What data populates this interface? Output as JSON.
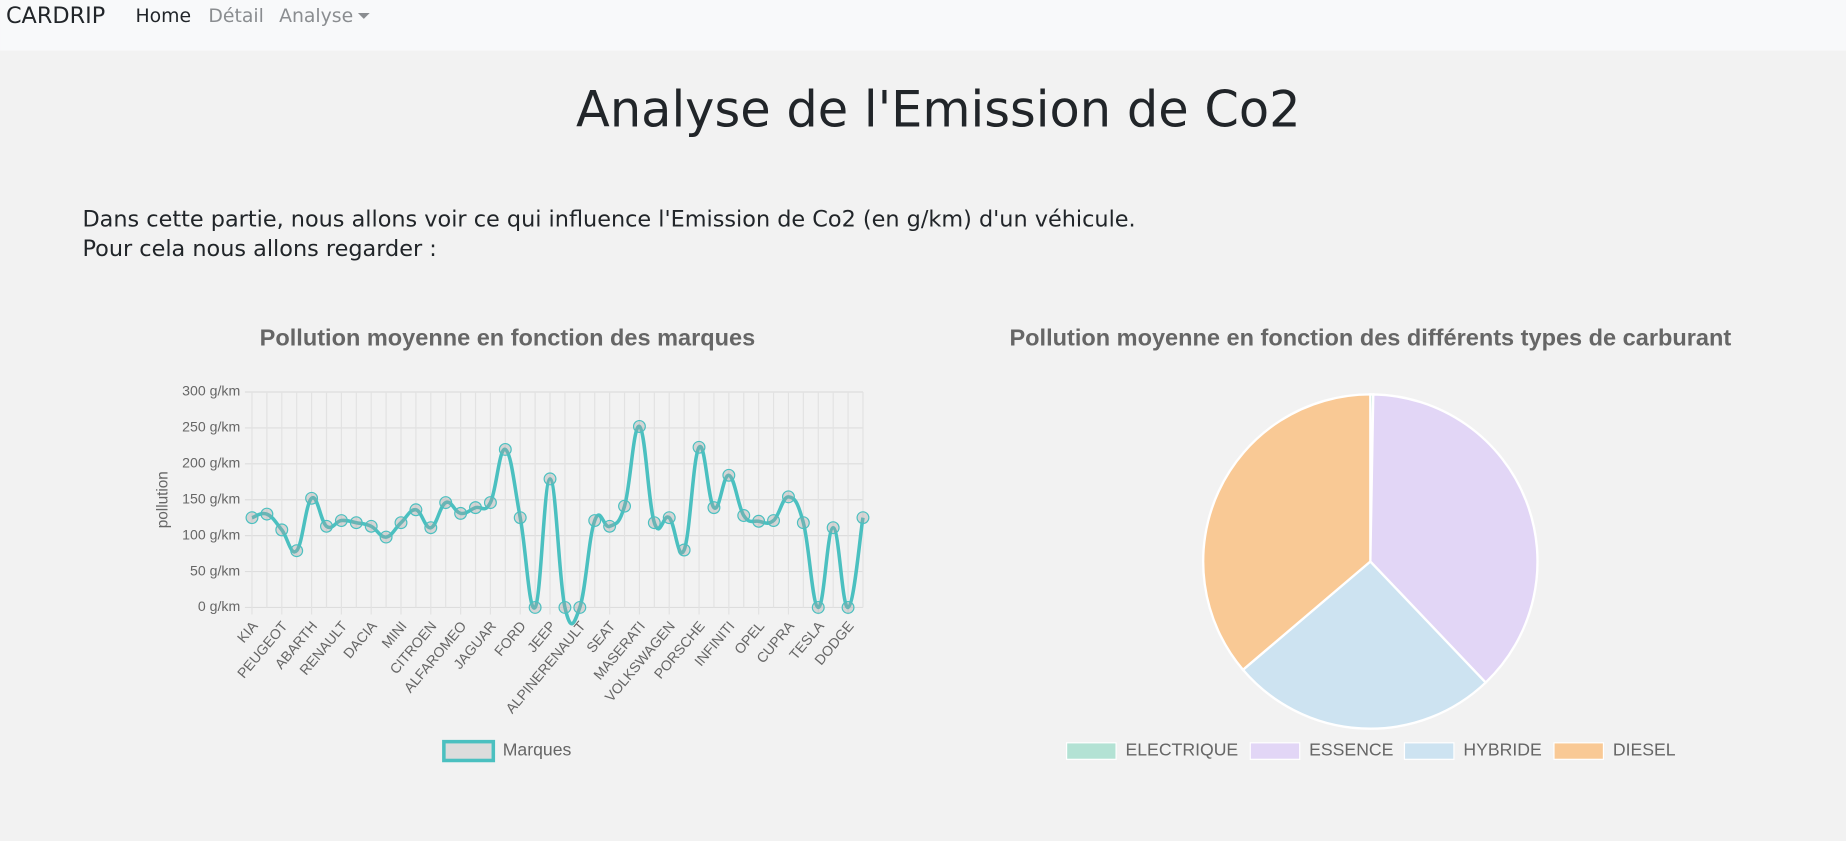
{
  "nav": {
    "brand": "CARDRIP",
    "links": [
      "Home",
      "Détail",
      "Analyse"
    ]
  },
  "heading": "Analyse de l'Emission de Co2",
  "intro": [
    "Dans cette partie, nous allons voir ce qui influence l'Emission de Co2 (en g/km) d'un véhicule.",
    "Pour cela nous allons regarder :"
  ],
  "chart_data": [
    {
      "type": "line",
      "title": "Pollution moyenne en fonction des marques",
      "y_label": "pollution",
      "categories": [
        "KIA",
        null,
        "PEUGEOT",
        null,
        "ABARTH",
        null,
        "RENAULT",
        null,
        "DACIA",
        null,
        "MINI",
        null,
        "CITROEN",
        null,
        "ALFAROMEO",
        null,
        "JAGUAR",
        null,
        "FORD",
        null,
        "JEEP",
        null,
        "ALPINERENAULT",
        null,
        "SEAT",
        null,
        "MASERATI",
        null,
        "VOLKSWAGEN",
        null,
        "PORSCHE",
        null,
        "INFINITI",
        null,
        "OPEL",
        null,
        "CUPRA",
        null,
        "TESLA",
        null,
        "DODGE",
        null
      ],
      "series": [
        {
          "name": "Marques",
          "color": "#4bc0c0",
          "values": [
            125,
            130,
            108,
            79,
            152,
            113,
            121,
            118,
            113,
            98,
            118,
            136,
            111,
            146,
            131,
            139,
            146,
            220,
            125,
            0,
            179,
            0,
            0,
            121,
            113,
            141,
            252,
            118,
            125,
            80,
            223,
            139,
            184,
            128,
            120,
            121,
            154,
            118,
            0,
            111,
            0,
            125
          ]
        }
      ],
      "ylim": [
        0,
        300
      ],
      "yticks": [
        {
          "value": 0,
          "label": "0 g/km"
        },
        {
          "value": 50,
          "label": "50 g/km"
        },
        {
          "value": 100,
          "label": "100 g/km"
        },
        {
          "value": 150,
          "label": "150 g/km"
        },
        {
          "value": 200,
          "label": "200 g/km"
        },
        {
          "value": 250,
          "label": "250 g/km"
        },
        {
          "value": 300,
          "label": "300 g/km"
        }
      ],
      "grid": true,
      "legend": "bottom"
    },
    {
      "type": "pie",
      "title": "Pollution moyenne en fonction des différents types de carburant",
      "categories": [
        "ELECTRIQUE",
        "ESSENCE",
        "HYBRIDE",
        "DIESEL"
      ],
      "values": [
        1,
        135,
        93,
        130
      ],
      "colors": [
        "#b3e2d4",
        "#e2d6f6",
        "#cde3f1",
        "#f9c995"
      ],
      "legend": "bottom"
    }
  ]
}
